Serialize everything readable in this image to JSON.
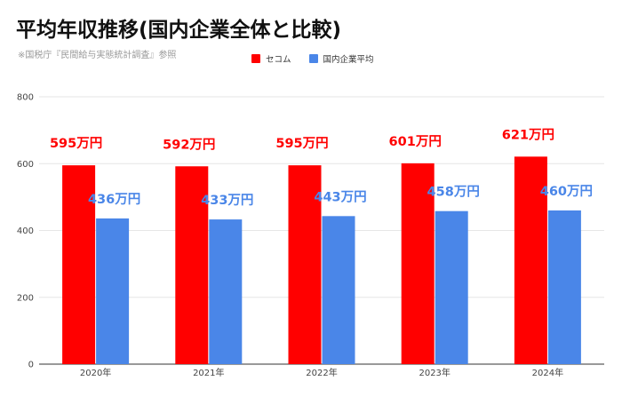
{
  "title": "平均年収推移(国内企業全体と比較)",
  "subtitle": "※国税庁『民間給与実態統計調査』参照",
  "colors": {
    "secom": "#ff0000",
    "national": "#4a86e8",
    "grid": "#e6e6e6",
    "axis": "#333333"
  },
  "chart_data": {
    "type": "bar",
    "categories": [
      "2020年",
      "2021年",
      "2022年",
      "2023年",
      "2024年"
    ],
    "series": [
      {
        "name": "セコム",
        "values": [
          595,
          592,
          595,
          601,
          621
        ],
        "labels": [
          "595万円",
          "592万円",
          "595万円",
          "601万円",
          "621万円"
        ]
      },
      {
        "name": "国内企業平均",
        "values": [
          436,
          433,
          443,
          458,
          460
        ],
        "labels": [
          "436万円",
          "433万円",
          "443万円",
          "458万円",
          "460万円"
        ]
      }
    ],
    "yticks": [
      "0",
      "200",
      "400",
      "600",
      "800"
    ],
    "ylim": [
      0,
      800
    ],
    "grid": true,
    "legend_position": "top"
  }
}
